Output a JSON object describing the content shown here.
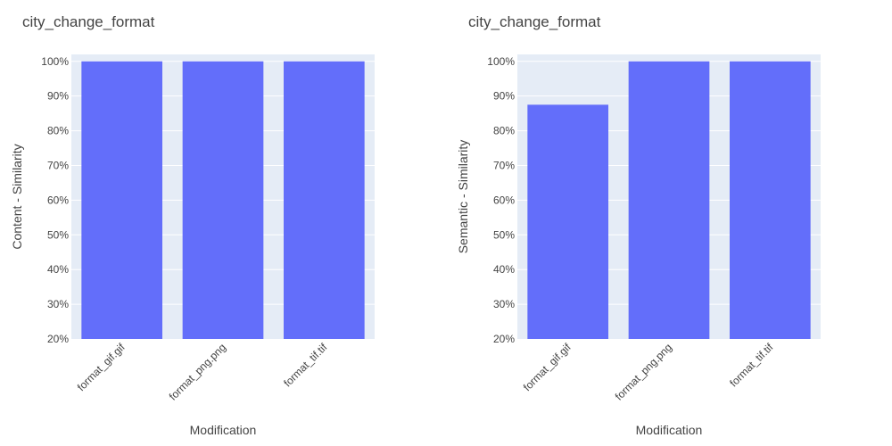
{
  "colors": {
    "plot_background": "#E5ECF6",
    "gridline": "#FFFFFF",
    "bar": "#636EFA",
    "text": "#444444",
    "page_background": "#FFFFFF"
  },
  "chart_data": [
    {
      "type": "bar",
      "title": "city_change_format",
      "xlabel": "Modification",
      "ylabel": "Content - Similarity",
      "categories": [
        "format_gif.gif",
        "format_png.png",
        "format_tif.tif"
      ],
      "values": [
        1.0,
        1.0,
        1.0
      ],
      "ylim": [
        0.2,
        1.02
      ],
      "yticks": [
        0.2,
        0.3,
        0.4,
        0.5,
        0.6,
        0.7,
        0.8,
        0.9,
        1.0
      ],
      "ytick_labels": [
        "20%",
        "30%",
        "40%",
        "50%",
        "60%",
        "70%",
        "80%",
        "90%",
        "100%"
      ],
      "grid": true,
      "legend": "none"
    },
    {
      "type": "bar",
      "title": "city_change_format",
      "xlabel": "Modification",
      "ylabel": "Semantic - Similarity",
      "categories": [
        "format_gif.gif",
        "format_png.png",
        "format_tif.tif"
      ],
      "values": [
        0.875,
        1.0,
        1.0
      ],
      "ylim": [
        0.2,
        1.02
      ],
      "yticks": [
        0.2,
        0.3,
        0.4,
        0.5,
        0.6,
        0.7,
        0.8,
        0.9,
        1.0
      ],
      "ytick_labels": [
        "20%",
        "30%",
        "40%",
        "50%",
        "60%",
        "70%",
        "80%",
        "90%",
        "100%"
      ],
      "grid": true,
      "legend": "none"
    }
  ]
}
